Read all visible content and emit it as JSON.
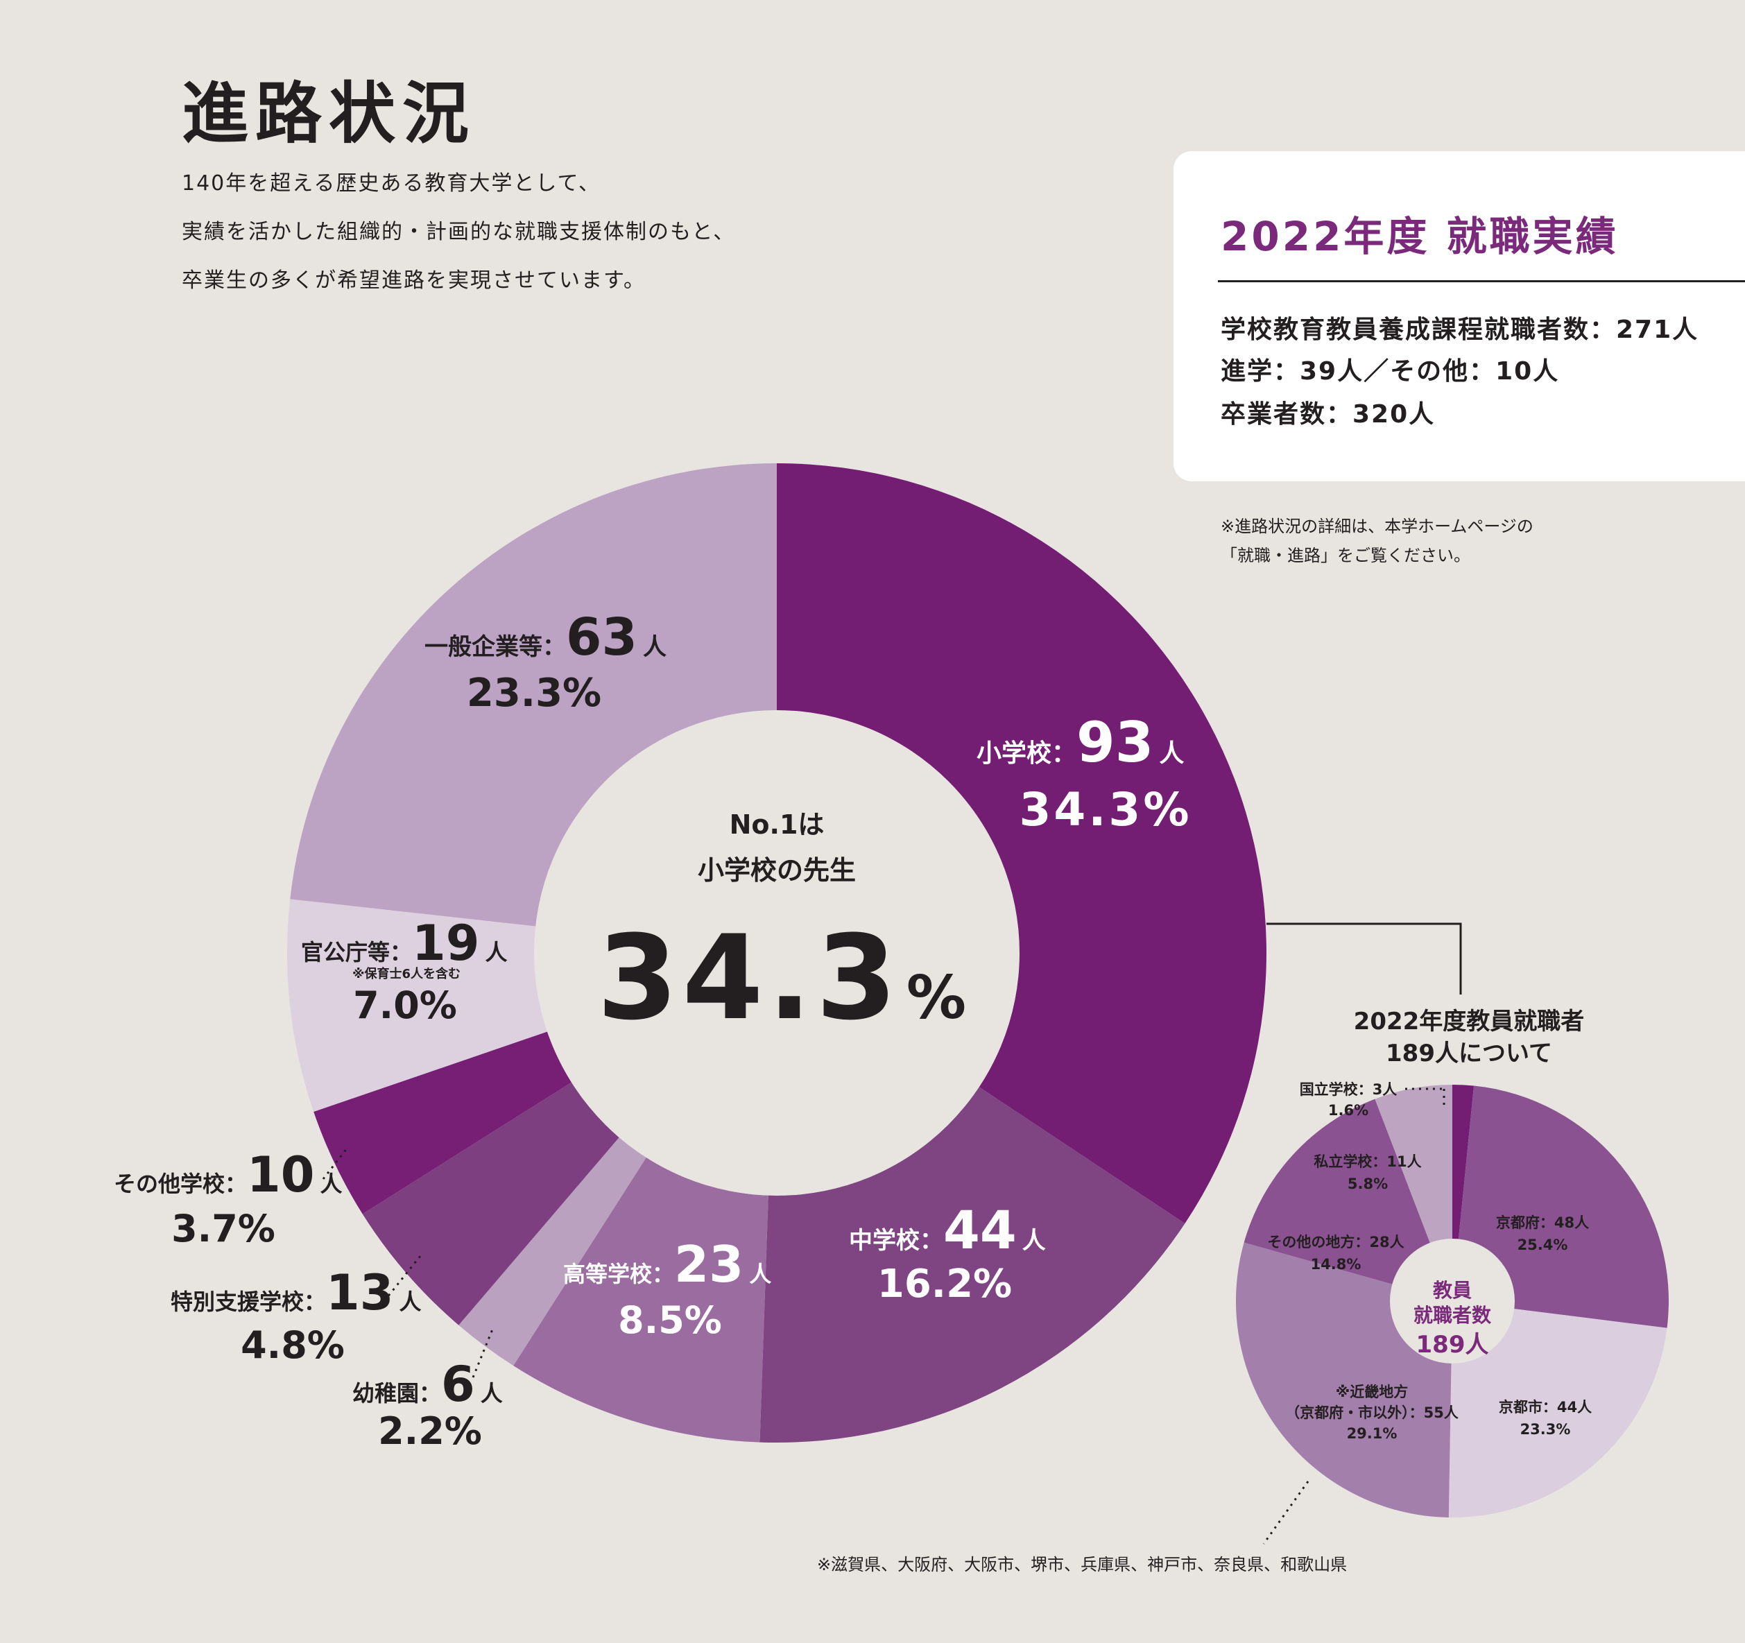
{
  "page": {
    "title": "進路状況",
    "intro": [
      "140年を超える歴史ある教育大学として、",
      "実績を活かした組織的・計画的な就職支援体制のもと、",
      "卒業生の多くが希望進路を実現させています。"
    ]
  },
  "summary": {
    "title": "2022年度 就職実績",
    "lines": [
      "学校教育教員養成課程就職者数：271人",
      "進学：39人／その他：10人",
      "卒業者数：320人"
    ]
  },
  "note_top": [
    "※進路状況の詳細は、本学ホームページの",
    "「就職・進路」をご覧ください。"
  ],
  "center": {
    "line1": "No.1は",
    "line2": "小学校の先生",
    "big": "34.3",
    "pct": "%"
  },
  "callout": {
    "line1": "2022年度教員就職者",
    "line2": "189人について"
  },
  "small_center": {
    "line1": "教員",
    "line2": "就職者数",
    "line3": "189人"
  },
  "note_bottom": "※滋賀県、大阪府、大阪市、堺市、兵庫県、神戸市、奈良県、和歌山県",
  "chart_data": [
    {
      "type": "pie",
      "title": "",
      "segments": [
        {
          "name": "小学校",
          "count": "93",
          "unit": "人",
          "percent": "34.3%",
          "value": 93,
          "color": "#741e73"
        },
        {
          "name": "中学校",
          "count": "44",
          "unit": "人",
          "percent": "16.2%",
          "value": 44,
          "color": "#7e4582"
        },
        {
          "name": "高等学校",
          "count": "23",
          "unit": "人",
          "percent": "8.5%",
          "value": 23,
          "color": "#9a6ca0"
        },
        {
          "name": "幼稚園",
          "count": "6",
          "unit": "人",
          "percent": "2.2%",
          "value": 6,
          "color": "#bba1c0"
        },
        {
          "name": "特別支援学校",
          "count": "13",
          "unit": "人",
          "percent": "4.8%",
          "value": 13,
          "color": "#7d3f80"
        },
        {
          "name": "その他学校",
          "count": "10",
          "unit": "人",
          "percent": "3.7%",
          "value": 10,
          "color": "#761f74"
        },
        {
          "name": "官公庁等",
          "count": "19",
          "unit": "人",
          "percent": "7.0%",
          "value": 19,
          "color": "#ddd0df",
          "note": "※保育士6人を含む"
        },
        {
          "name": "一般企業等",
          "count": "63",
          "unit": "人",
          "percent": "23.3%",
          "value": 63,
          "color": "#bca3c3"
        }
      ]
    },
    {
      "type": "pie",
      "title": "",
      "segments": [
        {
          "name": "国立学校",
          "count": "3人",
          "percent": "1.6%",
          "value": 3,
          "color": "#741e73"
        },
        {
          "name": "京都府",
          "count": "48人",
          "percent": "25.4%",
          "value": 48,
          "color": "#8a5290"
        },
        {
          "name": "京都市",
          "count": "44人",
          "percent": "23.3%",
          "value": 44,
          "color": "#dbcedf"
        },
        {
          "name": "※近畿地方",
          "sub": "（京都府・市以外）",
          "count": "55人",
          "percent": "29.1%",
          "value": 55,
          "color": "#a37fab"
        },
        {
          "name": "その他の地方",
          "count": "28人",
          "percent": "14.8%",
          "value": 28,
          "color": "#8a5290"
        },
        {
          "name": "私立学校",
          "count": "11人",
          "percent": "5.8%",
          "value": 11,
          "color": "#bda5c2"
        }
      ]
    }
  ]
}
